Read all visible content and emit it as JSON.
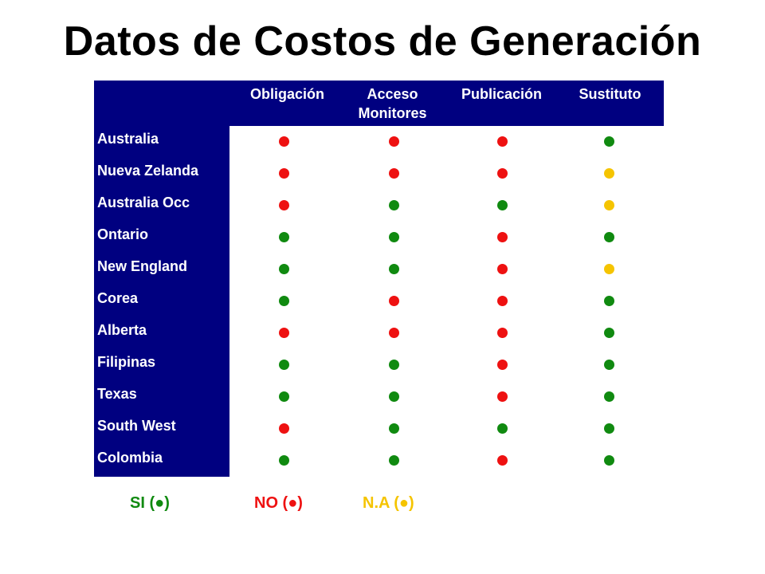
{
  "title": "Datos de Costos de Generación",
  "columns": [
    "Obligación",
    "Acceso\nMonitores",
    "Publicación",
    "Sustituto"
  ],
  "colors": {
    "header_bg": "#000080",
    "si": "#108a10",
    "no": "#ee1111",
    "na": "#f5c400"
  },
  "rows": [
    {
      "label": "Australia",
      "values": [
        "no",
        "no",
        "no",
        "si"
      ]
    },
    {
      "label": "Nueva Zelanda",
      "values": [
        "no",
        "no",
        "no",
        "na"
      ]
    },
    {
      "label": "Australia Occ",
      "values": [
        "no",
        "si",
        "si",
        "na"
      ]
    },
    {
      "label": "Ontario",
      "values": [
        "si",
        "si",
        "no",
        "si"
      ]
    },
    {
      "label": "New England",
      "values": [
        "si",
        "si",
        "no",
        "na"
      ]
    },
    {
      "label": "Corea",
      "values": [
        "si",
        "no",
        "no",
        "si"
      ]
    },
    {
      "label": "Alberta",
      "values": [
        "no",
        "no",
        "no",
        "si"
      ]
    },
    {
      "label": "Filipinas",
      "values": [
        "si",
        "si",
        "no",
        "si"
      ]
    },
    {
      "label": "Texas",
      "values": [
        "si",
        "si",
        "no",
        "si"
      ]
    },
    {
      "label": "South West",
      "values": [
        "no",
        "si",
        "si",
        "si"
      ]
    },
    {
      "label": "Colombia",
      "values": [
        "si",
        "si",
        "no",
        "si"
      ]
    }
  ],
  "legend": {
    "si": "SI (●)",
    "no": "NO (●)",
    "na": "N.A (●)"
  }
}
